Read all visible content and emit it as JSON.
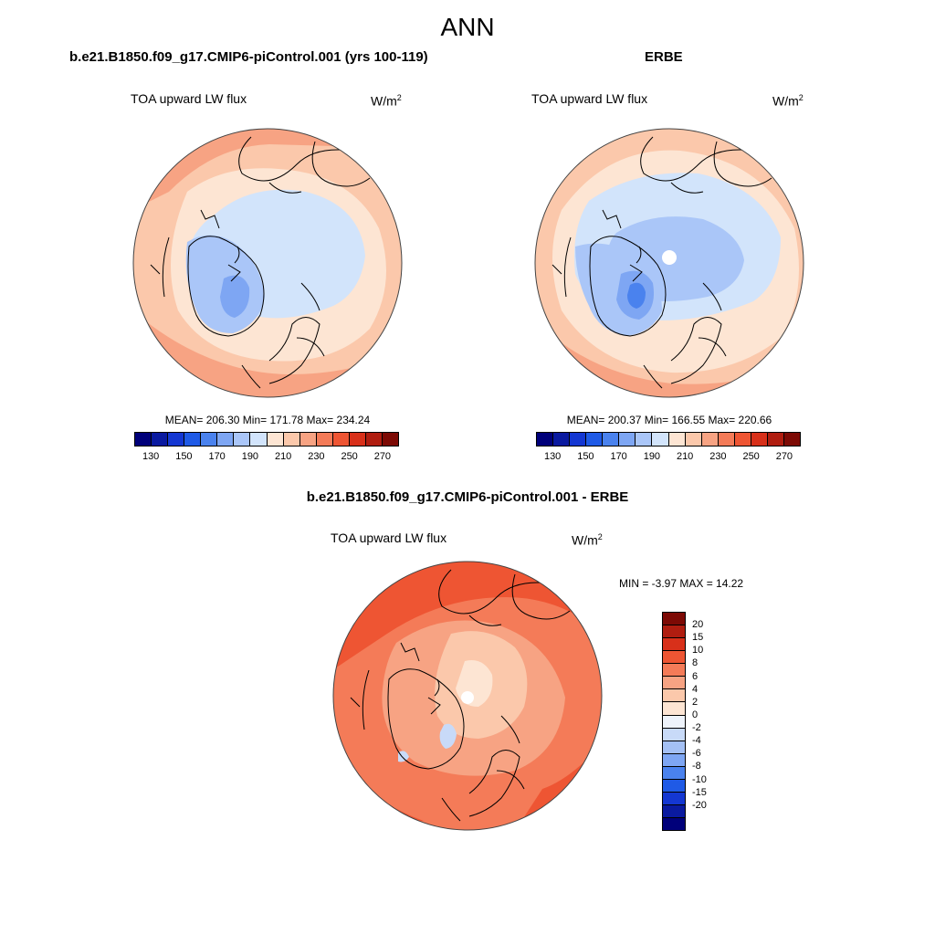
{
  "figure": {
    "title": "ANN"
  },
  "panels": {
    "model": {
      "title": "b.e21.B1850.f09_g17.CMIP6-piControl.001 (yrs 100-119)",
      "variable": "TOA upward LW flux",
      "unit_base": "W/m",
      "unit_exp": "2",
      "stats": "MEAN= 206.30  Min= 171.78  Max= 234.24",
      "mean": 206.3,
      "min": 171.78,
      "max": 234.24
    },
    "obs": {
      "title": "ERBE",
      "variable": "TOA upward LW flux",
      "unit_base": "W/m",
      "unit_exp": "2",
      "stats": "MEAN= 200.37  Min= 166.55  Max= 220.66",
      "mean": 200.37,
      "min": 166.55,
      "max": 220.66
    },
    "diff": {
      "title": "b.e21.B1850.f09_g17.CMIP6-piControl.001 - ERBE",
      "variable": "TOA upward LW flux",
      "unit_base": "W/m",
      "unit_exp": "2",
      "stats": "MIN =  -3.97 MAX =  14.22",
      "min": -3.97,
      "max": 14.22
    }
  },
  "colorbar_abs": {
    "colors": [
      "#00007a",
      "#0a1aa0",
      "#1437d2",
      "#1f5ae6",
      "#4a82ee",
      "#7ea6f3",
      "#aac6f8",
      "#d2e4fb",
      "#fde5d3",
      "#fbc8ab",
      "#f7a383",
      "#f47b58",
      "#ee5533",
      "#d8301a",
      "#b01d10",
      "#7d0a05"
    ],
    "ticks": [
      "130",
      "150",
      "170",
      "190",
      "210",
      "230",
      "250",
      "270"
    ]
  },
  "colorbar_diff": {
    "colors": [
      "#7d0a05",
      "#b01d10",
      "#d8301a",
      "#ee5533",
      "#f47b58",
      "#f7a383",
      "#fbc8ab",
      "#fde5d3",
      "#eef3fb",
      "#c8daf8",
      "#a4c0f4",
      "#7ea6f3",
      "#4a82ee",
      "#1f5ae6",
      "#1437d2",
      "#0a1aa0",
      "#00007a"
    ],
    "ticks": [
      "20",
      "15",
      "10",
      "8",
      "6",
      "4",
      "2",
      "0",
      "-2",
      "-4",
      "-6",
      "-8",
      "-10",
      "-15",
      "-20"
    ]
  },
  "map_colors": {
    "model": {
      "bg": "#fbc8ab",
      "ring_outer": "#f7a383",
      "mid": "#fde5d3",
      "polar": "#d2e4fb",
      "green_low": "#aac6f8",
      "green_core": "#7ea6f3"
    },
    "obs": {
      "bg": "#fbc8ab",
      "ring_outer": "#f7a383",
      "mid": "#fde5d3",
      "polar": "#d2e4fb",
      "polar2": "#aac6f8",
      "green_core": "#7ea6f3",
      "green_core2": "#4a82ee"
    },
    "diff": {
      "bg": "#f47b58",
      "ring": "#ee5533",
      "mid": "#f7a383",
      "light": "#fbc8ab",
      "pale": "#fde5d3",
      "neg": "#c8daf8"
    }
  }
}
